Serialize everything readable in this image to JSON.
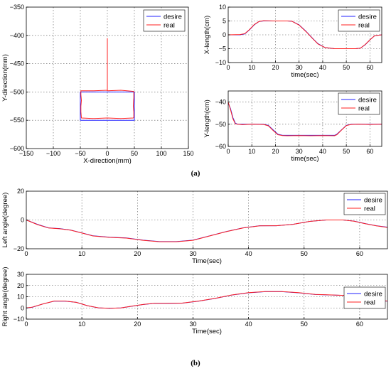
{
  "figure": {
    "label_a": "(a)",
    "label_b": "(b)"
  },
  "colors": {
    "desire": "#2020ff",
    "real": "#ff2020",
    "grid": "#555555",
    "axis": "#000000"
  },
  "chart_data": [
    {
      "id": "xy",
      "type": "line",
      "xlabel": "X-direction(mm)",
      "ylabel": "Y-direction(mm)",
      "xlim": [
        -150,
        150
      ],
      "ylim": [
        -600,
        -350
      ],
      "x_ticks": [
        -150,
        -100,
        -50,
        0,
        50,
        100,
        150
      ],
      "y_ticks": [
        -600,
        -550,
        -500,
        -450,
        -400,
        -350
      ],
      "grid": true,
      "legend": "top-right",
      "series": [
        {
          "name": "desire",
          "color": "#2020ff",
          "x": [
            0,
            50,
            50,
            -50,
            -50,
            0
          ],
          "y": [
            -500,
            -500,
            -550,
            -550,
            -500,
            -500
          ]
        },
        {
          "name": "real",
          "color": "#ff2020",
          "x": [
            0,
            0,
            0,
            0,
            0,
            25,
            49,
            49,
            48,
            49,
            49,
            48,
            25,
            0,
            -25,
            -48,
            -49,
            -49,
            -48,
            -49,
            -49,
            -25,
            0
          ],
          "y": [
            -405,
            -440,
            -470,
            -490,
            -498,
            -497,
            -499,
            -510,
            -525,
            -535,
            -545,
            -546,
            -547,
            -546,
            -547,
            -546,
            -535,
            -525,
            -515,
            -505,
            -498,
            -498,
            -497
          ]
        }
      ]
    },
    {
      "id": "xlen",
      "type": "line",
      "xlabel": "time(sec)",
      "ylabel": "X-length(cm)",
      "xlim": [
        0,
        65
      ],
      "ylim": [
        -10,
        10
      ],
      "x_ticks": [
        0,
        10,
        20,
        30,
        40,
        50,
        60
      ],
      "y_ticks": [
        -10,
        -5,
        0,
        5,
        10
      ],
      "grid": true,
      "legend": "top-right",
      "series": [
        {
          "name": "desire",
          "color": "#2020ff",
          "x": [
            0,
            5,
            7,
            9,
            11,
            13,
            15,
            20,
            25,
            27,
            30,
            33,
            36,
            38,
            41,
            45,
            50,
            54,
            56,
            58,
            60,
            62,
            65
          ],
          "y": [
            0,
            0,
            0.3,
            1.8,
            3.6,
            4.8,
            5,
            5,
            5,
            4.9,
            3.6,
            1.2,
            -1.5,
            -3.2,
            -4.6,
            -5,
            -5,
            -5,
            -4.8,
            -3.6,
            -1.8,
            -0.3,
            0
          ]
        },
        {
          "name": "real",
          "color": "#ff2020",
          "x": [
            0,
            5,
            7,
            9,
            11,
            13,
            15,
            20,
            25,
            27,
            30,
            33,
            36,
            38,
            41,
            45,
            50,
            54,
            56,
            58,
            60,
            62,
            65
          ],
          "y": [
            0,
            0.1,
            0.4,
            1.9,
            3.7,
            4.8,
            5.1,
            5,
            5,
            4.9,
            3.5,
            1.1,
            -1.6,
            -3.3,
            -4.6,
            -5,
            -5,
            -5,
            -4.8,
            -3.5,
            -1.8,
            -0.3,
            0
          ]
        }
      ]
    },
    {
      "id": "ylen",
      "type": "line",
      "xlabel": "time(sec)",
      "ylabel": "Y-length(cm)",
      "xlim": [
        0,
        65
      ],
      "ylim": [
        -60,
        -35
      ],
      "x_ticks": [
        0,
        10,
        20,
        30,
        40,
        50,
        60
      ],
      "y_ticks": [
        -60,
        -50,
        -40
      ],
      "grid": true,
      "legend": "top-right",
      "series": [
        {
          "name": "desire",
          "color": "#2020ff",
          "x": [
            0,
            1,
            2,
            3,
            4,
            6,
            10,
            15,
            17,
            19,
            21,
            23,
            25,
            30,
            35,
            40,
            45,
            46,
            48,
            50,
            52,
            55,
            60,
            65
          ],
          "y": [
            -40.5,
            -43,
            -47,
            -49.5,
            -50,
            -50,
            -50,
            -50,
            -50.5,
            -52.5,
            -54.5,
            -55,
            -55,
            -55,
            -55,
            -55,
            -55,
            -54.5,
            -52.5,
            -50.5,
            -50,
            -50,
            -50,
            -50
          ]
        },
        {
          "name": "real",
          "color": "#ff2020",
          "x": [
            0,
            1,
            2,
            3,
            4,
            6,
            10,
            15,
            17,
            19,
            21,
            23,
            25,
            30,
            35,
            40,
            45,
            46,
            48,
            50,
            52,
            55,
            60,
            65
          ],
          "y": [
            -40,
            -43.5,
            -47.5,
            -49.8,
            -50,
            -50.2,
            -50,
            -50.1,
            -50.7,
            -52.8,
            -54.7,
            -55.1,
            -55.2,
            -55.1,
            -55.2,
            -55.1,
            -55.2,
            -54.7,
            -52.6,
            -50.6,
            -50.1,
            -50,
            -50.1,
            -50
          ]
        }
      ]
    },
    {
      "id": "left",
      "type": "line",
      "xlabel": "Time(sec)",
      "ylabel": "Left angle(degree)",
      "xlim": [
        0,
        65
      ],
      "ylim": [
        -20,
        20
      ],
      "x_ticks": [
        0,
        10,
        20,
        30,
        40,
        50,
        60
      ],
      "y_ticks": [
        -20,
        0,
        20
      ],
      "grid": true,
      "legend": "top-right",
      "series": [
        {
          "name": "desire",
          "color": "#2020ff",
          "x": [
            0,
            2,
            4,
            6,
            8,
            10,
            12,
            15,
            18,
            21,
            24,
            27,
            30,
            33,
            36,
            39,
            42,
            45,
            48,
            51,
            54,
            57,
            59,
            61,
            63,
            65
          ],
          "y": [
            0,
            -3,
            -5.5,
            -6,
            -7,
            -9,
            -11,
            -12,
            -12.5,
            -14,
            -15,
            -15,
            -14,
            -11,
            -8,
            -5.5,
            -4,
            -4,
            -3,
            -1,
            0,
            0,
            -0.8,
            -2.5,
            -4,
            -5
          ]
        },
        {
          "name": "real",
          "color": "#ff2020",
          "x": [
            0,
            2,
            4,
            6,
            8,
            10,
            12,
            15,
            18,
            21,
            24,
            27,
            30,
            33,
            36,
            39,
            42,
            45,
            48,
            51,
            54,
            57,
            59,
            61,
            63,
            65
          ],
          "y": [
            0,
            -3.2,
            -5.6,
            -6.1,
            -7.1,
            -9.1,
            -11.1,
            -12.1,
            -12.6,
            -14.1,
            -15.1,
            -15.1,
            -14.1,
            -11.1,
            -8.1,
            -5.6,
            -4.1,
            -4,
            -3,
            -1,
            0,
            0,
            -0.9,
            -2.6,
            -4.1,
            -5.2
          ]
        }
      ]
    },
    {
      "id": "right",
      "type": "line",
      "xlabel": "Time(sec)",
      "ylabel": "Right angle(degree)",
      "xlim": [
        0,
        65
      ],
      "ylim": [
        -10,
        30
      ],
      "x_ticks": [
        0,
        10,
        20,
        30,
        40,
        50,
        60
      ],
      "y_ticks": [
        -10,
        0,
        10,
        20,
        30
      ],
      "grid": true,
      "legend": "top-right",
      "series": [
        {
          "name": "desire",
          "color": "#2020ff",
          "x": [
            0,
            1,
            3,
            5,
            7,
            9,
            11,
            13,
            15,
            17,
            19,
            21,
            23,
            25,
            28,
            31,
            34,
            37,
            40,
            43,
            46,
            49,
            52,
            55,
            58,
            61,
            63,
            65
          ],
          "y": [
            0,
            0.5,
            3.5,
            6,
            6,
            5,
            2,
            0,
            -0.3,
            0,
            1.5,
            3,
            4,
            4,
            4.2,
            6,
            8.5,
            11.5,
            13.5,
            14.5,
            14.5,
            13.5,
            12,
            11.5,
            11,
            8,
            6.5,
            6
          ]
        },
        {
          "name": "real",
          "color": "#ff2020",
          "x": [
            0,
            1,
            3,
            5,
            7,
            9,
            11,
            13,
            15,
            17,
            19,
            21,
            23,
            25,
            28,
            31,
            34,
            37,
            40,
            43,
            46,
            49,
            52,
            55,
            58,
            61,
            63,
            65
          ],
          "y": [
            0,
            0.6,
            3.6,
            6.1,
            6.1,
            5,
            2,
            0.1,
            -0.3,
            0,
            1.6,
            3.1,
            4.1,
            4.1,
            4.3,
            6.1,
            8.6,
            11.6,
            13.6,
            14.6,
            14.6,
            13.6,
            12.1,
            11.6,
            11,
            8.1,
            6.6,
            6.2
          ]
        }
      ]
    }
  ]
}
